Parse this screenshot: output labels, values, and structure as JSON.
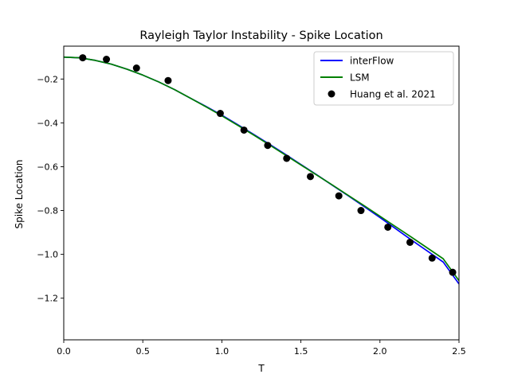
{
  "chart_data": {
    "type": "line",
    "title": "Rayleigh Taylor Instability - Spike Location",
    "xlabel": "T",
    "ylabel": "Spike Location",
    "xlim": [
      0.0,
      2.5
    ],
    "ylim": [
      -1.39,
      -0.05
    ],
    "xticks": [
      {
        "value": 0.0,
        "label": "0.0"
      },
      {
        "value": 0.5,
        "label": "0.5"
      },
      {
        "value": 1.0,
        "label": "1.0"
      },
      {
        "value": 1.5,
        "label": "1.5"
      },
      {
        "value": 2.0,
        "label": "2.0"
      },
      {
        "value": 2.5,
        "label": "2.5"
      }
    ],
    "yticks": [
      {
        "value": -0.2,
        "label": "−0.2"
      },
      {
        "value": -0.4,
        "label": "−0.4"
      },
      {
        "value": -0.6,
        "label": "−0.6"
      },
      {
        "value": -0.8,
        "label": "−0.8"
      },
      {
        "value": -1.0,
        "label": "−1.0"
      },
      {
        "value": -1.2,
        "label": "−1.2"
      }
    ],
    "grid": false,
    "legend_position": "top-right",
    "series": [
      {
        "name": "interFlow",
        "kind": "line",
        "color": "#0000ff",
        "x": [
          0.0,
          0.1,
          0.2,
          0.3,
          0.4,
          0.5,
          0.6,
          0.7,
          0.8,
          0.9,
          1.0,
          1.1,
          1.2,
          1.3,
          1.4,
          1.5,
          1.6,
          1.7,
          1.8,
          1.9,
          2.0,
          2.1,
          2.2,
          2.3,
          2.4,
          2.5
        ],
        "y": [
          -0.1,
          -0.103,
          -0.115,
          -0.132,
          -0.155,
          -0.182,
          -0.213,
          -0.248,
          -0.287,
          -0.325,
          -0.365,
          -0.408,
          -0.452,
          -0.497,
          -0.543,
          -0.59,
          -0.637,
          -0.685,
          -0.733,
          -0.782,
          -0.832,
          -0.883,
          -0.935,
          -0.985,
          -1.035,
          -1.135
        ]
      },
      {
        "name": "LSM",
        "kind": "line",
        "color": "#008000",
        "x": [
          0.0,
          0.1,
          0.2,
          0.3,
          0.4,
          0.5,
          0.6,
          0.7,
          0.8,
          0.9,
          1.0,
          1.1,
          1.2,
          1.3,
          1.4,
          1.5,
          1.6,
          1.7,
          1.8,
          1.9,
          2.0,
          2.1,
          2.2,
          2.3,
          2.4,
          2.5
        ],
        "y": [
          -0.1,
          -0.103,
          -0.115,
          -0.132,
          -0.155,
          -0.182,
          -0.213,
          -0.248,
          -0.287,
          -0.327,
          -0.368,
          -0.411,
          -0.455,
          -0.5,
          -0.546,
          -0.592,
          -0.638,
          -0.684,
          -0.731,
          -0.778,
          -0.826,
          -0.874,
          -0.922,
          -0.971,
          -1.02,
          -1.12
        ]
      },
      {
        "name": "Huang et al. 2021",
        "kind": "scatter",
        "color": "#000000",
        "x": [
          0.12,
          0.27,
          0.46,
          0.66,
          0.99,
          1.14,
          1.29,
          1.41,
          1.56,
          1.74,
          1.88,
          2.05,
          2.19,
          2.33,
          2.46
        ],
        "y": [
          -0.103,
          -0.11,
          -0.15,
          -0.207,
          -0.357,
          -0.433,
          -0.503,
          -0.562,
          -0.645,
          -0.733,
          -0.8,
          -0.876,
          -0.945,
          -1.017,
          -1.082
        ]
      }
    ]
  }
}
